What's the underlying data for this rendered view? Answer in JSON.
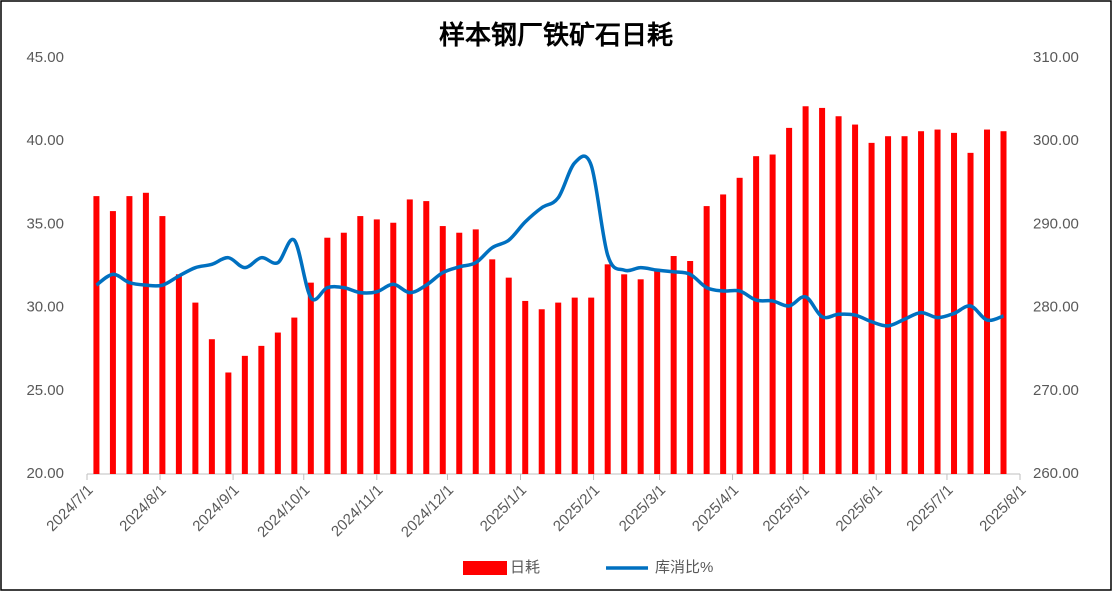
{
  "chart_data": {
    "type": "combo",
    "title": "样本钢厂铁矿石日耗",
    "x": [
      "2024/7/5",
      "2024/7/12",
      "2024/7/19",
      "2024/7/26",
      "2024/8/2",
      "2024/8/9",
      "2024/8/16",
      "2024/8/23",
      "2024/8/30",
      "2024/9/6",
      "2024/9/13",
      "2024/9/20",
      "2024/9/27",
      "2024/10/4",
      "2024/10/11",
      "2024/10/18",
      "2024/10/25",
      "2024/11/1",
      "2024/11/8",
      "2024/11/15",
      "2024/11/22",
      "2024/11/29",
      "2024/12/6",
      "2024/12/13",
      "2024/12/20",
      "2024/12/27",
      "2025/1/3",
      "2025/1/10",
      "2025/1/17",
      "2025/1/24",
      "2025/1/31",
      "2025/2/7",
      "2025/2/14",
      "2025/2/21",
      "2025/2/28",
      "2025/3/7",
      "2025/3/14",
      "2025/3/21",
      "2025/3/28",
      "2025/4/4",
      "2025/4/11",
      "2025/4/18",
      "2025/4/25",
      "2025/5/2",
      "2025/5/9",
      "2025/5/16",
      "2025/5/23",
      "2025/5/30",
      "2025/6/6",
      "2025/6/13",
      "2025/6/20",
      "2025/6/27",
      "2025/7/4",
      "2025/7/11",
      "2025/7/18",
      "2025/7/25"
    ],
    "series": [
      {
        "name": "日耗",
        "type": "bar",
        "color": "#ff0000",
        "values": [
          36.7,
          35.8,
          36.7,
          36.9,
          35.5,
          32.0,
          30.3,
          28.1,
          26.1,
          27.1,
          27.7,
          28.5,
          29.4,
          31.5,
          34.2,
          34.5,
          35.5,
          35.3,
          35.1,
          36.5,
          36.4,
          34.9,
          34.5,
          34.7,
          32.9,
          31.8,
          30.4,
          29.9,
          30.3,
          30.6,
          30.6,
          32.6,
          32.0,
          31.7,
          32.2,
          33.1,
          32.8,
          36.1,
          36.8,
          37.8,
          39.1,
          39.2,
          40.8,
          42.1,
          42.0,
          41.5,
          41.0,
          39.9,
          40.3,
          40.3,
          40.6,
          40.7,
          40.5,
          39.3,
          40.7,
          40.6
        ]
      },
      {
        "name": "库消比%",
        "type": "line",
        "axis": "y2",
        "color": "#0070c0",
        "values": [
          282.7,
          284.0,
          283.0,
          282.7,
          282.7,
          283.8,
          284.8,
          285.2,
          286.0,
          284.8,
          286.0,
          285.4,
          288.1,
          281.2,
          282.4,
          282.4,
          281.8,
          281.9,
          282.8,
          281.8,
          282.7,
          284.2,
          284.9,
          285.4,
          287.2,
          288.1,
          290.3,
          292.0,
          293.2,
          297.4,
          297.1,
          286.3,
          284.5,
          284.8,
          284.5,
          284.3,
          284.0,
          282.4,
          282.0,
          282.0,
          280.9,
          280.8,
          280.2,
          281.3,
          278.9,
          279.2,
          279.1,
          278.3,
          277.8,
          278.6,
          279.4,
          278.8,
          279.3,
          280.2,
          278.5,
          279.0
        ]
      }
    ],
    "xlim": [
      "2024/7/1",
      "2025/8/1"
    ],
    "xticks": [
      "2024/7/1",
      "2024/8/1",
      "2024/9/1",
      "2024/10/1",
      "2024/11/1",
      "2024/12/1",
      "2025/1/1",
      "2025/2/1",
      "2025/3/1",
      "2025/4/1",
      "2025/5/1",
      "2025/6/1",
      "2025/7/1",
      "2025/8/1"
    ],
    "ylim": [
      20,
      45
    ],
    "yticks": [
      {
        "value": 20,
        "label": "20.00"
      },
      {
        "value": 25,
        "label": "25.00"
      },
      {
        "value": 30,
        "label": "30.00"
      },
      {
        "value": 35,
        "label": "35.00"
      },
      {
        "value": 40,
        "label": "40.00"
      },
      {
        "value": 45,
        "label": "45.00"
      }
    ],
    "y2lim": [
      260,
      310
    ],
    "y2ticks": [
      {
        "value": 260,
        "label": "260.00"
      },
      {
        "value": 270,
        "label": "270.00"
      },
      {
        "value": 280,
        "label": "280.00"
      },
      {
        "value": 290,
        "label": "290.00"
      },
      {
        "value": 300,
        "label": "300.00"
      },
      {
        "value": 310,
        "label": "310.00"
      }
    ],
    "legend": "bottom"
  }
}
